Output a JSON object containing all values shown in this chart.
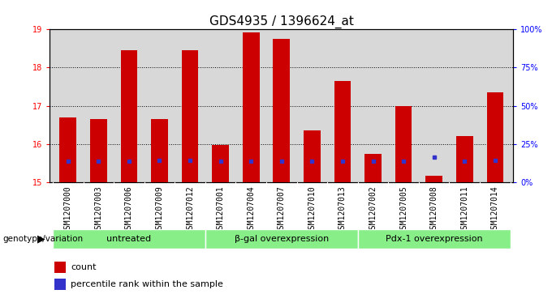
{
  "title": "GDS4935 / 1396624_at",
  "samples": [
    "GSM1207000",
    "GSM1207003",
    "GSM1207006",
    "GSM1207009",
    "GSM1207012",
    "GSM1207001",
    "GSM1207004",
    "GSM1207007",
    "GSM1207010",
    "GSM1207013",
    "GSM1207002",
    "GSM1207005",
    "GSM1207008",
    "GSM1207011",
    "GSM1207014"
  ],
  "counts": [
    16.7,
    16.65,
    18.45,
    16.65,
    18.45,
    15.97,
    18.93,
    18.75,
    16.35,
    17.65,
    15.75,
    17.0,
    15.17,
    16.2,
    17.35
  ],
  "percentile_ranks": [
    15.56,
    15.56,
    15.56,
    15.57,
    15.57,
    15.56,
    15.56,
    15.56,
    15.56,
    15.56,
    15.56,
    15.56,
    15.65,
    15.56,
    15.57
  ],
  "bar_color": "#cc0000",
  "blue_color": "#3333cc",
  "ylim_left": [
    15,
    19
  ],
  "ylim_right": [
    0,
    100
  ],
  "yticks_left": [
    15,
    16,
    17,
    18,
    19
  ],
  "ytick_labels_right": [
    "0%",
    "25%",
    "50%",
    "75%",
    "100%"
  ],
  "groups": [
    {
      "label": "untreated",
      "start": 0,
      "end": 5
    },
    {
      "label": "β-gal overexpression",
      "start": 5,
      "end": 10
    },
    {
      "label": "Pdx-1 overexpression",
      "start": 10,
      "end": 15
    }
  ],
  "group_color": "#88ee88",
  "xlabel_left": "genotype/variation",
  "legend_count": "count",
  "legend_percentile": "percentile rank within the sample",
  "bar_width": 0.55,
  "plot_bg": "#d8d8d8",
  "xtick_bg": "#c8c8c8",
  "fig_bg": "#ffffff",
  "title_fontsize": 11,
  "tick_fontsize": 7,
  "group_fontsize": 8,
  "legend_fontsize": 8
}
